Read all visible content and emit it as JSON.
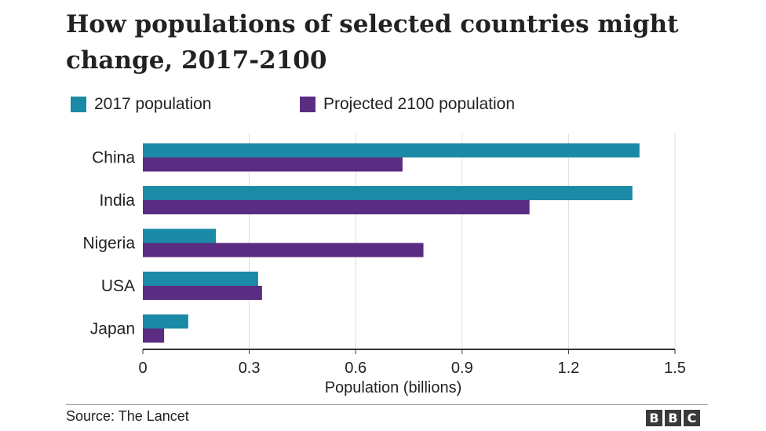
{
  "title": "How populations of selected countries might change, 2017-2100",
  "source": "Source: The Lancet",
  "logo_text": "BBC",
  "colors": {
    "series_2017": "#1a8aa6",
    "series_2100": "#5b2d82",
    "grid": "#dddddd",
    "axis": "#333333",
    "text": "#222222"
  },
  "chart_data": {
    "type": "bar",
    "orientation": "horizontal",
    "categories": [
      "China",
      "India",
      "Nigeria",
      "USA",
      "Japan"
    ],
    "series": [
      {
        "name": "2017 population",
        "values": [
          1.4,
          1.38,
          0.206,
          0.325,
          0.128
        ],
        "color": "#1a8aa6"
      },
      {
        "name": "Projected 2100 population",
        "values": [
          0.732,
          1.09,
          0.791,
          0.336,
          0.06
        ],
        "color": "#5b2d82"
      }
    ],
    "xlabel": "Population (billions)",
    "ylabel": "",
    "xlim": [
      0,
      1.5
    ],
    "xticks": [
      "0",
      "0.3",
      "0.6",
      "0.9",
      "1.2",
      "1.5"
    ],
    "grid": true,
    "legend_position": "top"
  }
}
